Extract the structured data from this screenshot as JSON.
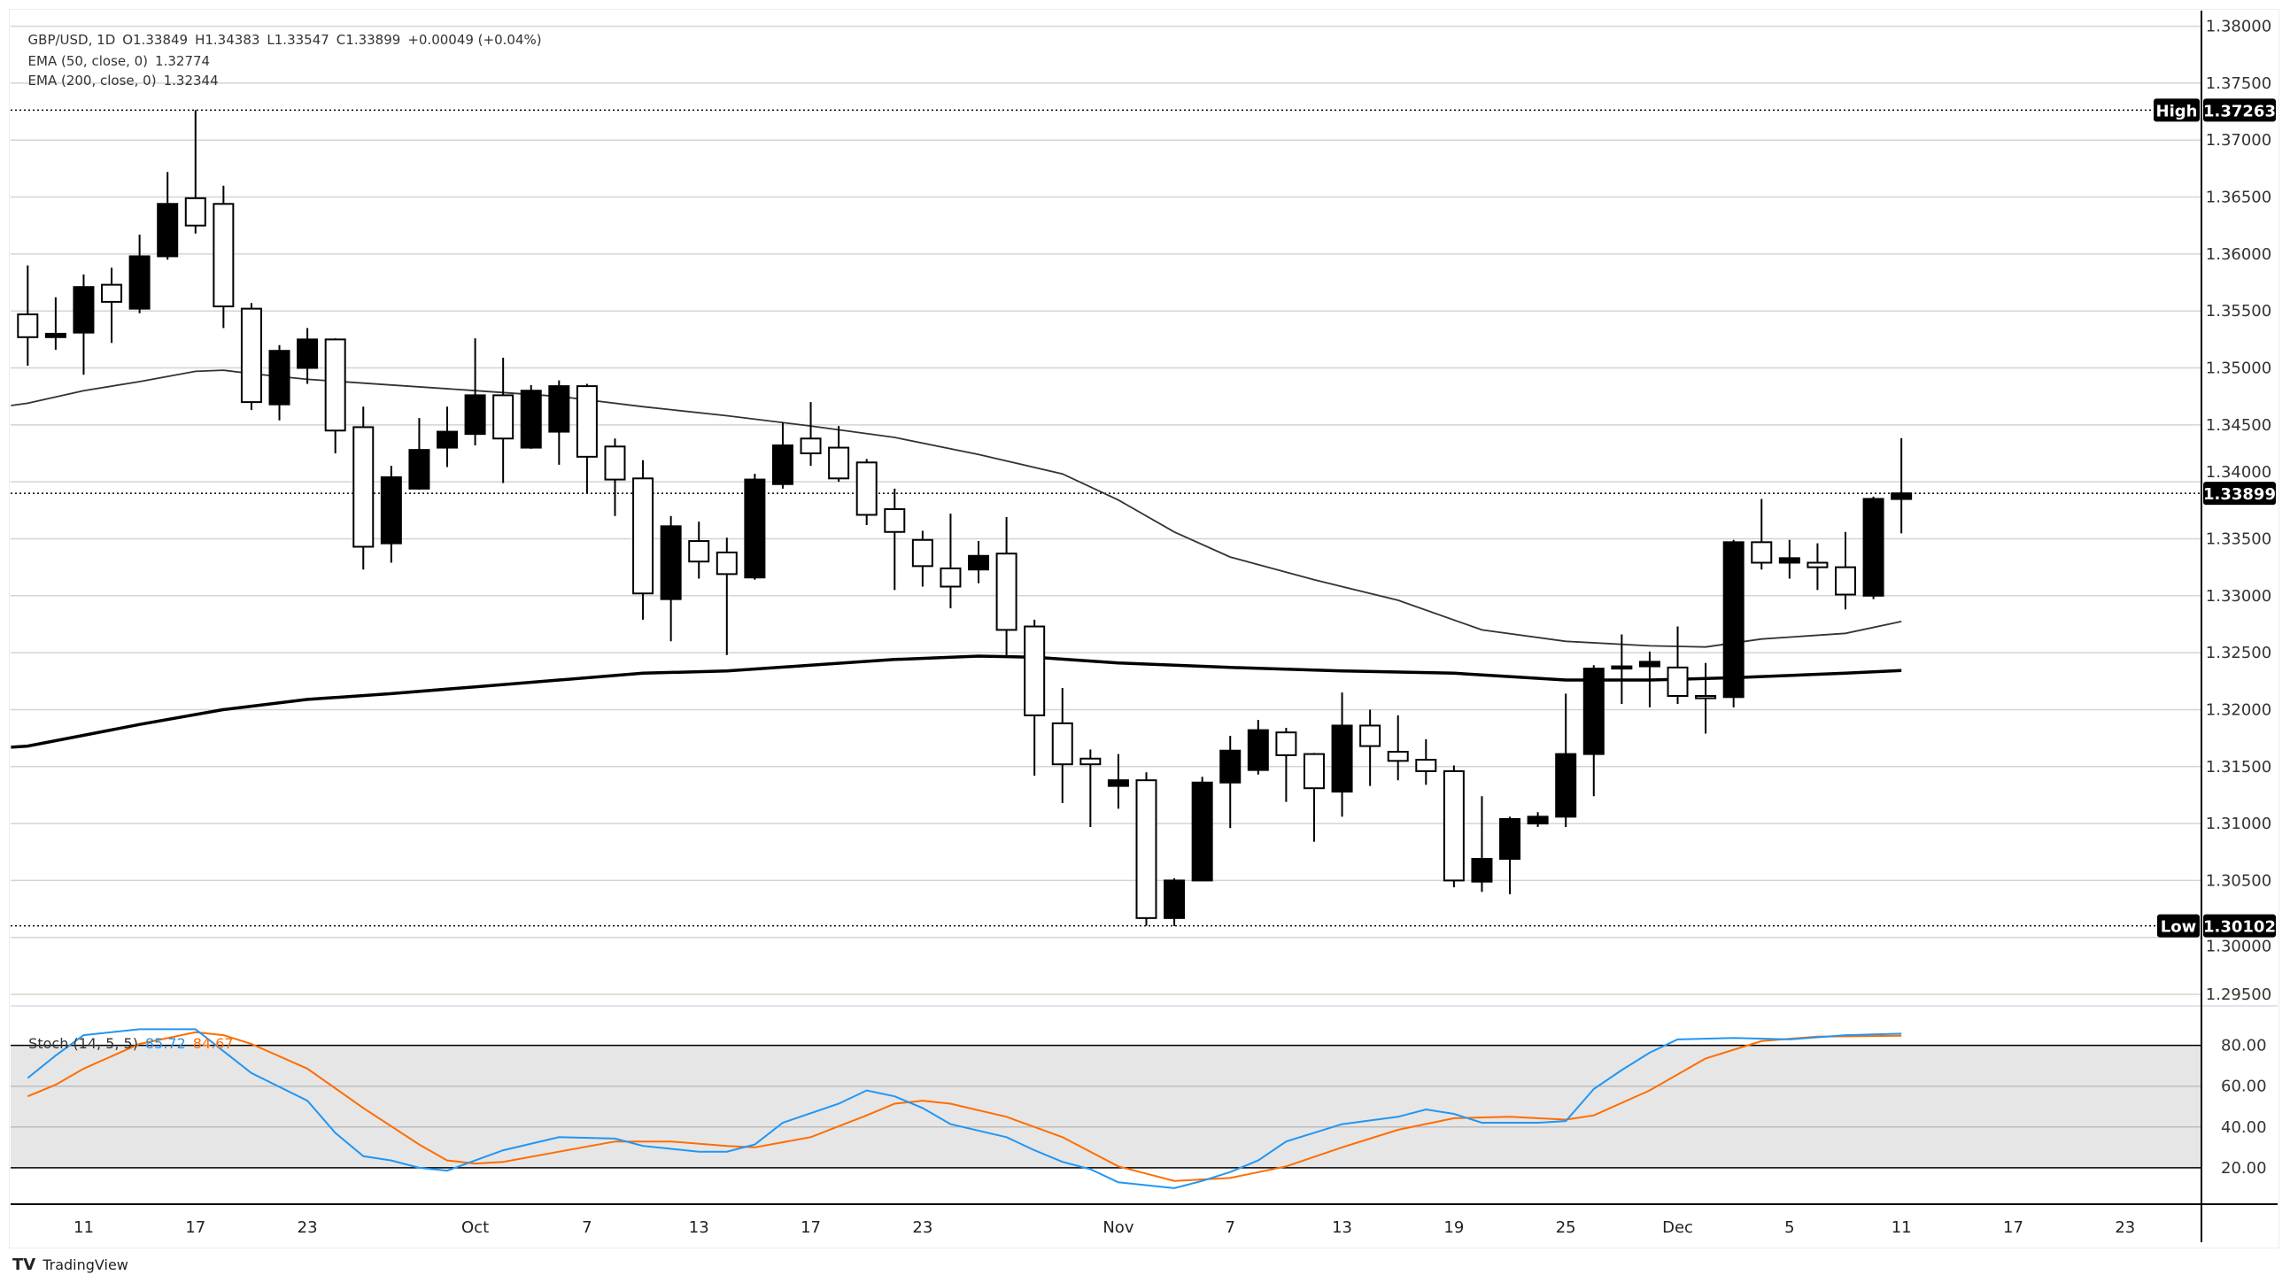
{
  "header": {
    "symbol": "GBP/USD, 1D",
    "open": "O1.33849",
    "high": "H1.34383",
    "low": "L1.33547",
    "close": "C1.33899",
    "change": "+0.00049 (+0.04%)",
    "ema50_label": "EMA (50, close, 0)",
    "ema50_value": "1.32774",
    "ema200_label": "EMA (200, close, 0)",
    "ema200_value": "1.32344"
  },
  "stoch": {
    "label": "Stoch (14, 5, 5)",
    "k_value": "85.72",
    "d_value": "84.67",
    "k_color": "#2196f3",
    "d_color": "#ff6d00",
    "ticks": [
      "80.00",
      "60.00",
      "40.00",
      "20.00"
    ]
  },
  "price_axis": {
    "ticks": [
      "1.38000",
      "1.37500",
      "1.37000",
      "1.36500",
      "1.36000",
      "1.35500",
      "1.35000",
      "1.34500",
      "1.34000",
      "1.33500",
      "1.33000",
      "1.32500",
      "1.32000",
      "1.31500",
      "1.31000",
      "1.30500",
      "1.30000",
      "1.29500"
    ]
  },
  "badges": {
    "high_label": "High",
    "high_value": "1.37263",
    "low_label": "Low",
    "low_value": "1.30102",
    "last_value": "1.33899"
  },
  "date_axis": {
    "labels": [
      "11",
      "17",
      "23",
      "Oct",
      "7",
      "13",
      "17",
      "23",
      "Nov",
      "7",
      "13",
      "19",
      "25",
      "Dec",
      "5",
      "11",
      "17",
      "23"
    ]
  },
  "branding": "TradingView",
  "chart_data": {
    "type": "candlestick",
    "symbol": "GBP/USD",
    "interval": "1D",
    "up_color": "#000000",
    "down_color": "#ffffff",
    "ylim": [
      1.2915,
      1.3815
    ],
    "candles_ohlc": [
      [
        1.3547,
        1.359,
        1.3502,
        1.3527
      ],
      [
        1.3527,
        1.3562,
        1.3516,
        1.353
      ],
      [
        1.3531,
        1.3582,
        1.3494,
        1.3571
      ],
      [
        1.3573,
        1.3588,
        1.3522,
        1.3558
      ],
      [
        1.3552,
        1.3617,
        1.3548,
        1.3598
      ],
      [
        1.3598,
        1.3672,
        1.3595,
        1.3644
      ],
      [
        1.3649,
        1.37263,
        1.3618,
        1.3625
      ],
      [
        1.3644,
        1.366,
        1.3535,
        1.3554
      ],
      [
        1.3552,
        1.3557,
        1.3463,
        1.347
      ],
      [
        1.3468,
        1.352,
        1.3454,
        1.3515
      ],
      [
        1.35,
        1.3535,
        1.3486,
        1.3525
      ],
      [
        1.3525,
        1.3526,
        1.3425,
        1.3445
      ],
      [
        1.3448,
        1.3466,
        1.3323,
        1.3343
      ],
      [
        1.3346,
        1.3414,
        1.3329,
        1.3404
      ],
      [
        1.3394,
        1.3456,
        1.3393,
        1.3428
      ],
      [
        1.343,
        1.3466,
        1.3413,
        1.3444
      ],
      [
        1.3442,
        1.3526,
        1.3432,
        1.3476
      ],
      [
        1.3476,
        1.3509,
        1.3399,
        1.3438
      ],
      [
        1.343,
        1.3485,
        1.3429,
        1.348
      ],
      [
        1.3444,
        1.3489,
        1.3415,
        1.3484
      ],
      [
        1.3484,
        1.3486,
        1.339,
        1.3422
      ],
      [
        1.3431,
        1.3438,
        1.337,
        1.3402
      ],
      [
        1.3403,
        1.3419,
        1.3279,
        1.3302
      ],
      [
        1.3297,
        1.337,
        1.326,
        1.3361
      ],
      [
        1.3348,
        1.3365,
        1.3315,
        1.333
      ],
      [
        1.3338,
        1.3351,
        1.3248,
        1.3319
      ],
      [
        1.3316,
        1.3407,
        1.3314,
        1.3402
      ],
      [
        1.3398,
        1.3452,
        1.3394,
        1.3432
      ],
      [
        1.3438,
        1.347,
        1.3414,
        1.3425
      ],
      [
        1.343,
        1.3449,
        1.34,
        1.3403
      ],
      [
        1.3417,
        1.342,
        1.3362,
        1.3371
      ],
      [
        1.3376,
        1.3394,
        1.3305,
        1.3356
      ],
      [
        1.3349,
        1.3357,
        1.3308,
        1.3326
      ],
      [
        1.3324,
        1.3372,
        1.3289,
        1.3308
      ],
      [
        1.3323,
        1.3348,
        1.3311,
        1.3335
      ],
      [
        1.3337,
        1.3369,
        1.3247,
        1.327
      ],
      [
        1.3273,
        1.3279,
        1.3142,
        1.3195
      ],
      [
        1.3188,
        1.3219,
        1.3118,
        1.3152
      ],
      [
        1.3157,
        1.3165,
        1.3097,
        1.3152
      ],
      [
        1.3133,
        1.3161,
        1.3113,
        1.3138
      ],
      [
        1.3138,
        1.3145,
        1.30102,
        1.3017
      ],
      [
        1.3017,
        1.3052,
        1.301,
        1.305
      ],
      [
        1.305,
        1.3141,
        1.3096,
        1.3136
      ],
      [
        1.3136,
        1.3177,
        1.3096,
        1.3164
      ],
      [
        1.3147,
        1.3191,
        1.3143,
        1.3182
      ],
      [
        1.318,
        1.3184,
        1.3119,
        1.316
      ],
      [
        1.3161,
        1.3162,
        1.3084,
        1.3131
      ],
      [
        1.3128,
        1.3215,
        1.3106,
        1.3186
      ],
      [
        1.3186,
        1.32,
        1.3133,
        1.3168
      ],
      [
        1.3163,
        1.3195,
        1.3138,
        1.3155
      ],
      [
        1.3156,
        1.3174,
        1.3134,
        1.3146
      ],
      [
        1.3146,
        1.3151,
        1.3044,
        1.305
      ],
      [
        1.3049,
        1.3124,
        1.304,
        1.3069
      ],
      [
        1.3069,
        1.3106,
        1.3038,
        1.3104
      ],
      [
        1.31,
        1.311,
        1.3097,
        1.3106
      ],
      [
        1.3106,
        1.3214,
        1.3097,
        1.3161
      ],
      [
        1.3161,
        1.3239,
        1.3124,
        1.3236
      ],
      [
        1.3236,
        1.3266,
        1.3205,
        1.3238
      ],
      [
        1.3238,
        1.3251,
        1.3202,
        1.3242
      ],
      [
        1.3237,
        1.3273,
        1.3205,
        1.3212
      ],
      [
        1.3212,
        1.3241,
        1.3179,
        1.321
      ],
      [
        1.3211,
        1.3349,
        1.3202,
        1.3347
      ],
      [
        1.3347,
        1.3385,
        1.3323,
        1.3329
      ],
      [
        1.3329,
        1.3349,
        1.3315,
        1.3333
      ],
      [
        1.3329,
        1.3346,
        1.3305,
        1.3325
      ],
      [
        1.3325,
        1.3356,
        1.3288,
        1.3301
      ],
      [
        1.33,
        1.3387,
        1.3297,
        1.3385
      ],
      [
        1.33849,
        1.34383,
        1.33547,
        1.33899
      ]
    ],
    "ema50": [
      [
        0,
        1.3469
      ],
      [
        2,
        1.348
      ],
      [
        4,
        1.3488
      ],
      [
        6,
        1.3497
      ],
      [
        7,
        1.3498
      ],
      [
        8,
        1.3495
      ],
      [
        10,
        1.349
      ],
      [
        13,
        1.3485
      ],
      [
        16,
        1.348
      ],
      [
        19,
        1.3475
      ],
      [
        22,
        1.3466
      ],
      [
        25,
        1.3458
      ],
      [
        28,
        1.3449
      ],
      [
        31,
        1.3439
      ],
      [
        34,
        1.3424
      ],
      [
        37,
        1.3407
      ],
      [
        39,
        1.3384
      ],
      [
        41,
        1.3356
      ],
      [
        43,
        1.3334
      ],
      [
        46,
        1.3314
      ],
      [
        49,
        1.3296
      ],
      [
        52,
        1.327
      ],
      [
        55,
        1.326
      ],
      [
        58,
        1.3256
      ],
      [
        60,
        1.3255
      ],
      [
        62,
        1.3262
      ],
      [
        65,
        1.3267
      ],
      [
        67,
        1.32774
      ]
    ],
    "ema200": [
      [
        0,
        1.3168
      ],
      [
        4,
        1.3187
      ],
      [
        7,
        1.32
      ],
      [
        10,
        1.3209
      ],
      [
        13,
        1.3214
      ],
      [
        16,
        1.322
      ],
      [
        19,
        1.3226
      ],
      [
        22,
        1.3232
      ],
      [
        25,
        1.3234
      ],
      [
        28,
        1.3239
      ],
      [
        31,
        1.3244
      ],
      [
        34,
        1.3247
      ],
      [
        36,
        1.3246
      ],
      [
        39,
        1.3241
      ],
      [
        43,
        1.3237
      ],
      [
        47,
        1.3234
      ],
      [
        51,
        1.3232
      ],
      [
        55,
        1.3226
      ],
      [
        58,
        1.3226
      ],
      [
        61,
        1.3228
      ],
      [
        65,
        1.3232
      ],
      [
        67,
        1.32344
      ]
    ],
    "stoch_ylim": [
      0,
      100
    ],
    "stoch_band": [
      20,
      80
    ],
    "stoch_k": [
      [
        0,
        64
      ],
      [
        1,
        75
      ],
      [
        2,
        85
      ],
      [
        4,
        87.9
      ],
      [
        6,
        87.9
      ],
      [
        8,
        66.4
      ],
      [
        10,
        52.9
      ],
      [
        11,
        37.1
      ],
      [
        12,
        25.7
      ],
      [
        13,
        23.6
      ],
      [
        14,
        20
      ],
      [
        15,
        18.6
      ],
      [
        16,
        23.6
      ],
      [
        17,
        28.6
      ],
      [
        19,
        35
      ],
      [
        21,
        34.3
      ],
      [
        22,
        30.7
      ],
      [
        24,
        27.9
      ],
      [
        25,
        27.9
      ],
      [
        26,
        31.4
      ],
      [
        27,
        42.1
      ],
      [
        29,
        51.4
      ],
      [
        30,
        57.9
      ],
      [
        31,
        55
      ],
      [
        32,
        49.3
      ],
      [
        33,
        41.4
      ],
      [
        35,
        35
      ],
      [
        36,
        28.6
      ],
      [
        37,
        22.9
      ],
      [
        38,
        19.3
      ],
      [
        39,
        12.9
      ],
      [
        41,
        10
      ],
      [
        42,
        13.6
      ],
      [
        43,
        17.9
      ],
      [
        44,
        23.6
      ],
      [
        45,
        32.9
      ],
      [
        47,
        41.4
      ],
      [
        49,
        45
      ],
      [
        50,
        48.6
      ],
      [
        51,
        46.4
      ],
      [
        52,
        42.1
      ],
      [
        54,
        42.1
      ],
      [
        55,
        42.9
      ],
      [
        56,
        58.6
      ],
      [
        57,
        67.9
      ],
      [
        58,
        76.4
      ],
      [
        59,
        82.9
      ],
      [
        61,
        83.6
      ],
      [
        63,
        82.9
      ],
      [
        65,
        85
      ],
      [
        67,
        85.72
      ]
    ],
    "stoch_d": [
      [
        0,
        55
      ],
      [
        1,
        60.7
      ],
      [
        2,
        68.6
      ],
      [
        4,
        80.7
      ],
      [
        6,
        86.4
      ],
      [
        7,
        85
      ],
      [
        8,
        80.7
      ],
      [
        10,
        68.6
      ],
      [
        12,
        49.3
      ],
      [
        14,
        31.4
      ],
      [
        15,
        23.6
      ],
      [
        16,
        22.1
      ],
      [
        17,
        22.9
      ],
      [
        19,
        27.9
      ],
      [
        21,
        32.9
      ],
      [
        23,
        32.9
      ],
      [
        25,
        30.7
      ],
      [
        26,
        30
      ],
      [
        28,
        35
      ],
      [
        30,
        45.7
      ],
      [
        31,
        51.4
      ],
      [
        32,
        52.9
      ],
      [
        33,
        51.4
      ],
      [
        35,
        45
      ],
      [
        37,
        35
      ],
      [
        39,
        20.7
      ],
      [
        41,
        13.6
      ],
      [
        43,
        15
      ],
      [
        45,
        20.7
      ],
      [
        47,
        30
      ],
      [
        49,
        38.6
      ],
      [
        51,
        44.3
      ],
      [
        53,
        45
      ],
      [
        55,
        43.6
      ],
      [
        56,
        45.7
      ],
      [
        58,
        57.9
      ],
      [
        60,
        73.6
      ],
      [
        62,
        82.1
      ],
      [
        64,
        84.3
      ],
      [
        67,
        84.67
      ]
    ]
  }
}
